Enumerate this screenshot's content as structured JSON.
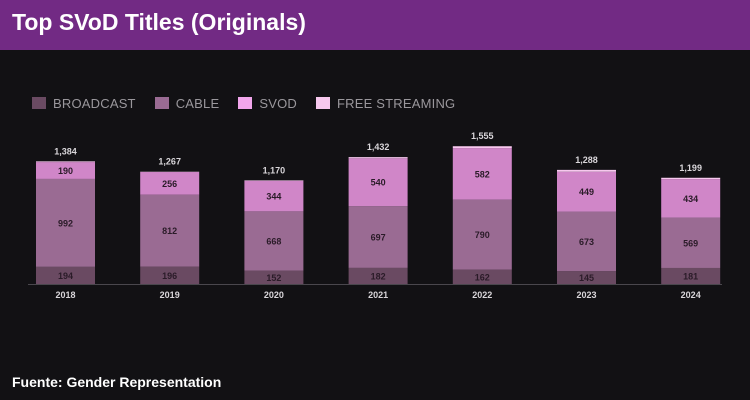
{
  "header": {
    "title": "Top SVoD Titles (Originals)"
  },
  "footer": {
    "source": "Fuente: Gender Representation"
  },
  "colors": {
    "header_bg": "#722a84",
    "background": "#121114",
    "broadcast": "#6a4a62",
    "cable": "#9a6b93",
    "svod": "#d086c8",
    "free_streaming": "#f7c8ee",
    "total_label": "#d9d6da",
    "segment_label": "#2a1b28",
    "axis_label": "#d9d6da"
  },
  "legend": [
    {
      "label": "BROADCAST",
      "color": "#6a4a62"
    },
    {
      "label": "CABLE",
      "color": "#9a6b93"
    },
    {
      "label": "SVOD",
      "color": "#f2a6ec"
    },
    {
      "label": "FREE STREAMING",
      "color": "#f7c8ee"
    }
  ],
  "chart_data": {
    "type": "bar",
    "stacked": true,
    "title": "Top SVoD Titles (Originals)",
    "categories": [
      "2018",
      "2019",
      "2020",
      "2021",
      "2022",
      "2023",
      "2024"
    ],
    "series": [
      {
        "name": "BROADCAST",
        "values": [
          194,
          196,
          152,
          182,
          162,
          145,
          181
        ],
        "labels": [
          "194",
          "196",
          "152",
          "182",
          "162",
          "145",
          "181"
        ]
      },
      {
        "name": "CABLE",
        "values": [
          992,
          812,
          668,
          697,
          790,
          673,
          569
        ],
        "labels": [
          "992",
          "812",
          "668",
          "697",
          "790",
          "673",
          "569"
        ]
      },
      {
        "name": "SVOD",
        "values": [
          190,
          256,
          344,
          540,
          582,
          449,
          434
        ],
        "labels": [
          "190",
          "256",
          "344",
          "540",
          "582",
          "449",
          "434"
        ]
      },
      {
        "name": "FREE STREAMING",
        "values": [
          8,
          3,
          6,
          13,
          21,
          21,
          15
        ]
      }
    ],
    "totals": [
      "1,384",
      "1,267",
      "1,170",
      "1,432",
      "1,555",
      "1,288",
      "1,199"
    ],
    "ylim": [
      0,
      1600
    ],
    "grid": false,
    "legend_position": "top-left"
  }
}
